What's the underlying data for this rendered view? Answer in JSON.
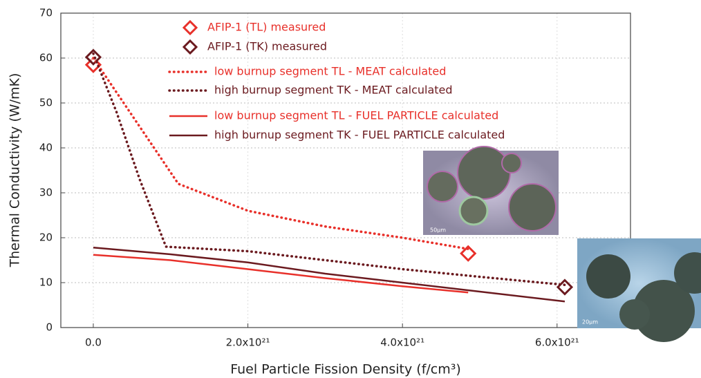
{
  "chart_data": {
    "type": "line",
    "xlabel": "Fuel Particle Fission Density (f/cm³)",
    "ylabel": "Thermal Conductivity (W/mK)",
    "xlim": [
      -4.2e+20,
      6.95e+21
    ],
    "ylim": [
      0,
      70
    ],
    "xticks": [
      {
        "value": 0,
        "label": "0.0"
      },
      {
        "value": 2e+21,
        "label": "2.0x10²¹"
      },
      {
        "value": 4e+21,
        "label": "4.0x10²¹"
      },
      {
        "value": 6e+21,
        "label": "6.0x10²¹"
      }
    ],
    "yticks": [
      0,
      10,
      20,
      30,
      40,
      50,
      60,
      70
    ],
    "grid": true,
    "annotations": [
      "50µm",
      "20µm"
    ],
    "series": [
      {
        "name": "AFIP-1 (TL) measured",
        "color": "#e8302a",
        "style": "marker",
        "x": [
          0,
          4.85e+21
        ],
        "values": [
          58.5,
          16.5
        ]
      },
      {
        "name": "AFIP-1 (TK) measured",
        "color": "#6b1a1f",
        "style": "marker",
        "x": [
          0,
          6.1e+21
        ],
        "values": [
          60.2,
          9
        ]
      },
      {
        "name": "low burnup segment TL - MEAT calculated",
        "color": "#e8302a",
        "style": "dotted",
        "x": [
          0,
          1.1e+21,
          2e+21,
          3e+21,
          4e+21,
          4.85e+21
        ],
        "values": [
          60,
          32,
          26,
          22.5,
          20,
          17.5
        ]
      },
      {
        "name": "high burnup segment TK - MEAT calculated",
        "color": "#6b1a1f",
        "style": "dotted",
        "x": [
          0,
          3e+20,
          6e+20,
          9.4e+20,
          2e+21,
          3e+21,
          4e+21,
          5e+21,
          6.1e+21
        ],
        "values": [
          61,
          48,
          33,
          18,
          17,
          15,
          13,
          11.3,
          9.5
        ]
      },
      {
        "name": "low burnup segment TL - FUEL PARTICLE calculated",
        "color": "#e8302a",
        "style": "solid",
        "x": [
          0,
          1e+21,
          2e+21,
          3e+21,
          4e+21,
          4.85e+21
        ],
        "values": [
          16.2,
          15,
          13,
          11,
          9.2,
          7.8
        ]
      },
      {
        "name": "high burnup segment TK - FUEL PARTICLE calculated",
        "color": "#6b1a1f",
        "style": "solid",
        "x": [
          0,
          1e+21,
          2e+21,
          3e+21,
          4e+21,
          5e+21,
          6.1e+21
        ],
        "values": [
          17.8,
          16.3,
          14.5,
          12,
          10,
          8,
          5.8
        ]
      }
    ]
  }
}
